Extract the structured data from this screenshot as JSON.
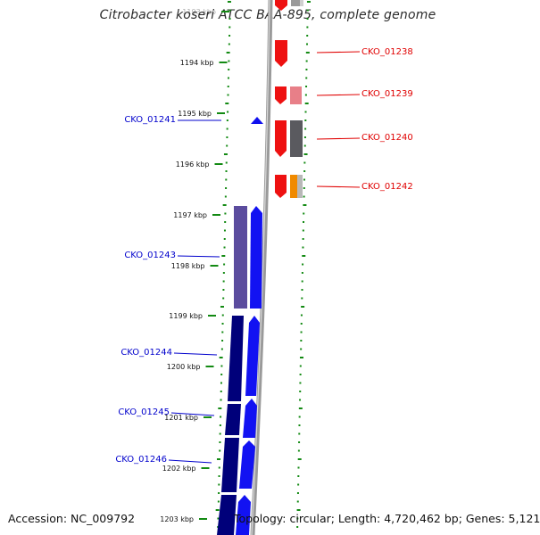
{
  "title": "Citrobacter koseri ATCC BAA-895, complete genome",
  "footer": {
    "accession": "Accession: NC_009792",
    "summary": "Topology: circular; Length: 4,720,462 bp; Genes: 5,121"
  },
  "colors": {
    "reverse_label": "#0000cc",
    "forward_label": "#e00000",
    "tick_green": "#138a13",
    "backbone": "#8c8c8c"
  },
  "kbp_ticks": [
    "1193 kbp",
    "1194 kbp",
    "1195 kbp",
    "1196 kbp",
    "1197 kbp",
    "1198 kbp",
    "1199 kbp",
    "1200 kbp",
    "1201 kbp",
    "1202 kbp",
    "1203 kbp"
  ],
  "reverse_genes": [
    "CKO_01241",
    "CKO_01243",
    "CKO_01244",
    "CKO_01245",
    "CKO_01246"
  ],
  "forward_genes": [
    "CKO_01238",
    "CKO_01239",
    "CKO_01240",
    "CKO_01242"
  ]
}
